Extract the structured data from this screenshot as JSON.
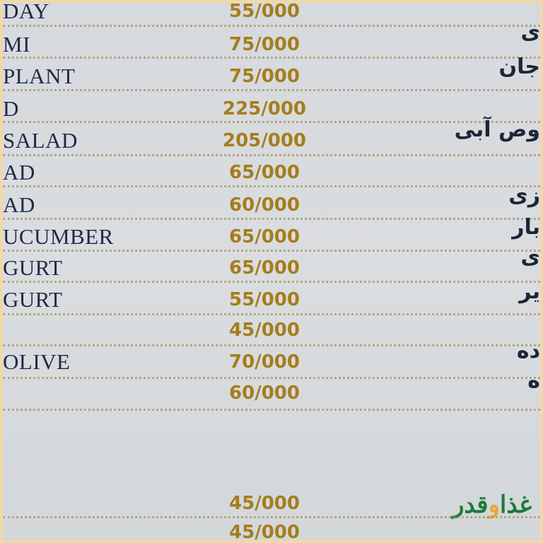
{
  "menu": {
    "items": [
      {
        "name": "DAY",
        "price": "55/000",
        "farsi": ""
      },
      {
        "name": "MI",
        "price": "75/000",
        "farsi": "ی"
      },
      {
        "name": "PLANT",
        "price": "75/000",
        "farsi": "جان"
      },
      {
        "name": "D",
        "price": "225/000",
        "farsi": ""
      },
      {
        "name": "SALAD",
        "price": "205/000",
        "farsi": "وص آبی"
      },
      {
        "name": "AD",
        "price": "65/000",
        "farsi": ""
      },
      {
        "name": "AD",
        "price": "60/000",
        "farsi": "زی"
      },
      {
        "name": "UCUMBER",
        "price": "65/000",
        "farsi": "بار"
      },
      {
        "name": "GURT",
        "price": "65/000",
        "farsi": "ی"
      },
      {
        "name": "GURT",
        "price": "55/000",
        "farsi": "یر"
      },
      {
        "name": "",
        "price": "45/000",
        "farsi": ""
      },
      {
        "name": "OLIVE",
        "price": "70/000",
        "farsi": "ده"
      },
      {
        "name": "",
        "price": "60/000",
        "farsi": "ه"
      },
      {
        "name": "",
        "price": "45/000",
        "farsi": ""
      },
      {
        "name": "",
        "price": "45/000",
        "farsi": ""
      }
    ]
  },
  "logo": {
    "part1": "غذا",
    "part2": "و",
    "part3": "قدر"
  },
  "colors": {
    "price": "#a57d1c",
    "text": "#1e2a44",
    "frame": "#efd9a9",
    "logo_green": "#1e7a3c",
    "logo_gold": "#e3a73a"
  }
}
